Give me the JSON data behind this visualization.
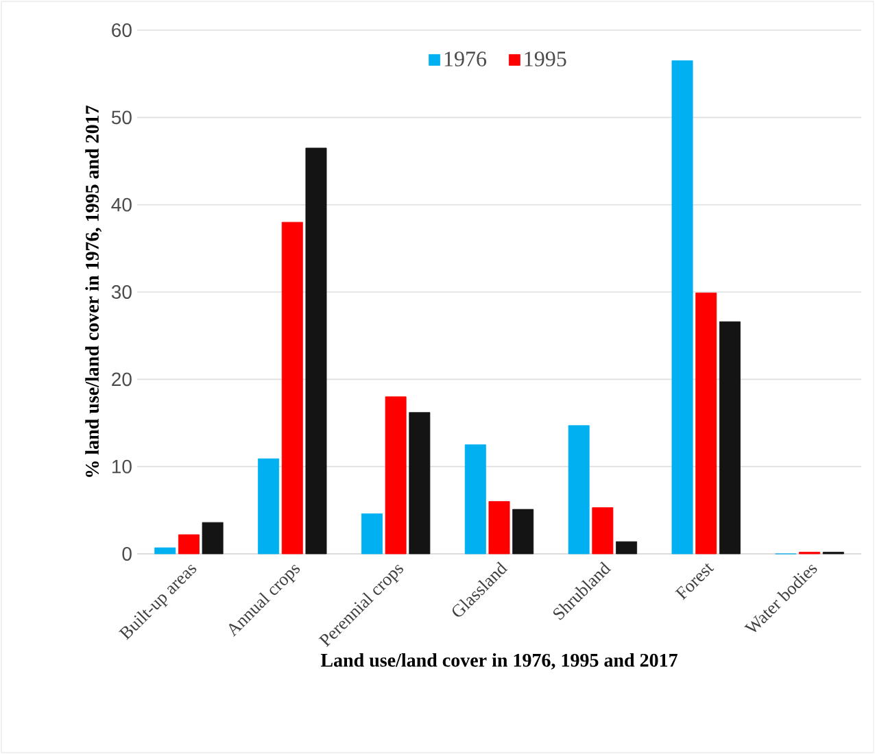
{
  "chart_data": {
    "type": "bar",
    "xlabel": "Land use/land cover in 1976, 1995 and 2017",
    "ylabel": "% land use/land cover in 1976, 1995 and 2017",
    "categories": [
      "Built-up areas",
      "Annual crops",
      "Perennial crops",
      "Glassland",
      "Shrubland",
      "Forest",
      "Water bodies"
    ],
    "series": [
      {
        "name": "1976",
        "color": "#00b0f0",
        "values": [
          0.7,
          10.9,
          4.6,
          12.5,
          14.7,
          56.5,
          0
        ]
      },
      {
        "name": "1995",
        "color": "#ff0000",
        "values": [
          2.2,
          38.0,
          18.0,
          6.0,
          5.3,
          29.9,
          0.2
        ]
      },
      {
        "color": "#141414",
        "values": [
          3.6,
          46.5,
          16.2,
          5.1,
          1.4,
          26.6,
          0.2
        ]
      }
    ],
    "ylim": [
      0,
      60
    ],
    "yticks": [
      0,
      10,
      20,
      30,
      40,
      50,
      60
    ],
    "grid": "y",
    "legend": "top"
  }
}
